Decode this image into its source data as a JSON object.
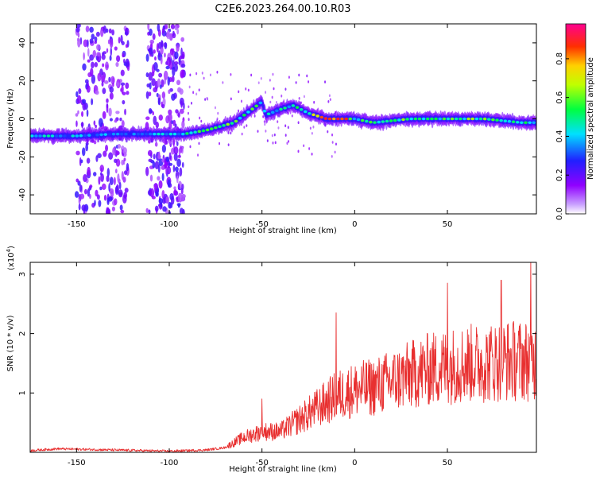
{
  "title": "C2E6.2023.264.00.10.R03",
  "chart_data": [
    {
      "type": "heatmap",
      "xlabel": "Height of straight line (km)",
      "ylabel": "Frequency (Hz)",
      "xlim": [
        -175,
        98
      ],
      "ylim": [
        -50,
        50
      ],
      "xticks": [
        -150,
        -100,
        -50,
        0,
        50
      ],
      "yticks": [
        -40,
        -20,
        0,
        20,
        40
      ],
      "colorbar": {
        "label": "Normalized spectral amplitude",
        "range": [
          0,
          0.98
        ],
        "ticks": [
          "0.0",
          "0.2",
          "0.4",
          "0.6",
          "0.8"
        ],
        "colormap": "purple-blue-cyan-green-yellow-red"
      },
      "ridge": {
        "x": [
          -175,
          -150,
          -130,
          -110,
          -92,
          -80,
          -65,
          -50,
          -48,
          -40,
          -33,
          -25,
          -15,
          -5,
          0,
          10,
          30,
          50,
          70,
          90,
          98
        ],
        "freq_hz": [
          -9,
          -9,
          -8,
          -8,
          -8,
          -6,
          -2,
          9,
          2,
          5,
          7,
          3,
          0,
          0,
          0,
          -2,
          0,
          0,
          0,
          -2,
          -2
        ],
        "amplitude": [
          0.45,
          0.4,
          0.35,
          0.4,
          0.45,
          0.65,
          0.55,
          0.55,
          0.5,
          0.45,
          0.45,
          0.6,
          0.95,
          0.95,
          0.5,
          0.55,
          0.6,
          0.55,
          0.6,
          0.5,
          0.45
        ]
      },
      "noise_bands_km": [
        [
          -150,
          -122
        ],
        [
          -112,
          -92
        ]
      ]
    },
    {
      "type": "line",
      "xlabel": "Height of straight line (km)",
      "ylabel": "SNR (10 * v/v)",
      "y_multiplier": "(x10",
      "y_multiplier_exp": "4",
      "y_multiplier_close": ")",
      "xlim": [
        -175,
        98
      ],
      "ylim": [
        0,
        3.2
      ],
      "xticks": [
        -150,
        -100,
        -50,
        0,
        50
      ],
      "yticks": [
        1,
        2,
        3
      ],
      "color": "#e83030",
      "trend": {
        "x": [
          -175,
          -160,
          -100,
          -80,
          -70,
          -60,
          -50,
          -40,
          -30,
          -20,
          -10,
          0,
          10,
          20,
          30,
          40,
          50,
          60,
          70,
          80,
          90,
          98
        ],
        "y": [
          0.03,
          0.06,
          0.02,
          0.04,
          0.08,
          0.25,
          0.35,
          0.35,
          0.55,
          0.75,
          0.95,
          1.05,
          1.1,
          1.2,
          1.3,
          1.4,
          1.45,
          1.5,
          1.5,
          1.55,
          1.55,
          1.55
        ]
      },
      "peaks": [
        {
          "x": -50,
          "y": 0.9
        },
        {
          "x": -10,
          "y": 2.35
        },
        {
          "x": 50,
          "y": 2.85
        },
        {
          "x": 79,
          "y": 2.9
        },
        {
          "x": 95,
          "y": 3.2
        }
      ]
    }
  ]
}
